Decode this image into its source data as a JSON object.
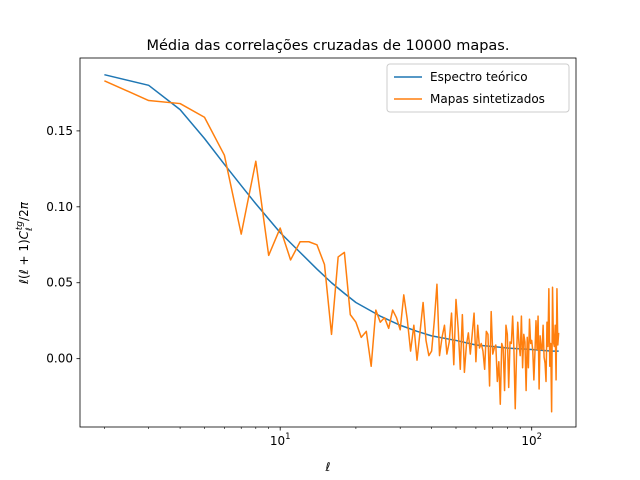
{
  "chart_data": {
    "type": "line",
    "title": "Média das correlações cruzadas de 10000 mapas.",
    "xlabel": "ℓ",
    "ylabel": "ℓ(ℓ + 1)C_ℓ^tg/2π",
    "xscale": "log",
    "xlim": [
      1.6,
      150
    ],
    "ylim": [
      -0.045,
      0.198
    ],
    "x_ticks": [
      {
        "value": 10,
        "base": "10",
        "exp": "1"
      },
      {
        "value": 100,
        "base": "10",
        "exp": "2"
      }
    ],
    "y_ticks": [
      {
        "value": 0.0,
        "label": "0.00"
      },
      {
        "value": 0.05,
        "label": "0.05"
      },
      {
        "value": 0.1,
        "label": "0.10"
      },
      {
        "value": 0.15,
        "label": "0.15"
      }
    ],
    "grid": false,
    "legend_position": "top-right",
    "colors": {
      "theory": "#1f77b4",
      "synth": "#ff7f0e"
    },
    "series": [
      {
        "name": "Espectro teórico",
        "color": "#1f77b4",
        "x": [
          2,
          3,
          4,
          5,
          6,
          7,
          8,
          9,
          10,
          12,
          14,
          16,
          18,
          20,
          25,
          30,
          35,
          40,
          50,
          60,
          70,
          80,
          100,
          120,
          128
        ],
        "y": [
          0.187,
          0.18,
          0.164,
          0.145,
          0.128,
          0.114,
          0.102,
          0.092,
          0.083,
          0.07,
          0.059,
          0.05,
          0.043,
          0.037,
          0.028,
          0.022,
          0.018,
          0.015,
          0.012,
          0.009,
          0.008,
          0.007,
          0.006,
          0.005,
          0.005
        ]
      },
      {
        "name": "Mapas sintetizados",
        "color": "#ff7f0e",
        "x": [
          2,
          3,
          4,
          5,
          6,
          7,
          8,
          9,
          10,
          11,
          12,
          13,
          14,
          15,
          16,
          17,
          18,
          19,
          20,
          21,
          22,
          23,
          24,
          25,
          26,
          27,
          28,
          29,
          30,
          31,
          32,
          33,
          34,
          35,
          36,
          37,
          38,
          39,
          40,
          41,
          42,
          43,
          44,
          45,
          46,
          47,
          48,
          49,
          50,
          51,
          52,
          53,
          54,
          55,
          56,
          57,
          58,
          59,
          60,
          61,
          62,
          63,
          64,
          65,
          66,
          67,
          68,
          69,
          70,
          71,
          72,
          73,
          74,
          75,
          76,
          77,
          78,
          79,
          80,
          81,
          82,
          83,
          84,
          85,
          86,
          87,
          88,
          89,
          90,
          91,
          92,
          93,
          94,
          95,
          96,
          97,
          98,
          99,
          100,
          101,
          102,
          103,
          104,
          105,
          106,
          107,
          108,
          109,
          110,
          111,
          112,
          113,
          114,
          115,
          116,
          117,
          118,
          119,
          120,
          121,
          122,
          123,
          124,
          125,
          126,
          127,
          128
        ],
        "y": [
          0.183,
          0.17,
          0.168,
          0.159,
          0.134,
          0.082,
          0.13,
          0.068,
          0.086,
          0.065,
          0.077,
          0.077,
          0.075,
          0.062,
          0.016,
          0.067,
          0.07,
          0.029,
          0.024,
          0.014,
          0.018,
          -0.005,
          0.032,
          0.024,
          0.027,
          0.02,
          0.032,
          0.027,
          0.019,
          0.042,
          0.026,
          0.005,
          0.022,
          -0.001,
          0.018,
          0.037,
          0.012,
          0.002,
          0.005,
          0.025,
          0.049,
          0.002,
          0.014,
          0.022,
          0.003,
          0.011,
          0.03,
          -0.004,
          0.039,
          0.02,
          -0.007,
          0.029,
          -0.009,
          0.009,
          0.017,
          0.003,
          0.016,
          0.03,
          -0.002,
          0.022,
          0.007,
          0.01,
          0.005,
          -0.007,
          0.018,
          0.016,
          -0.018,
          0.031,
          0.003,
          0.007,
          0.009,
          -0.015,
          -0.002,
          -0.03,
          0.01,
          0.007,
          -0.021,
          0.022,
          0.016,
          -0.019,
          0.011,
          0.01,
          0.028,
          0.005,
          -0.033,
          0.002,
          0.024,
          0.01,
          0.002,
          0.028,
          -0.006,
          0.016,
          0.011,
          -0.021,
          0.014,
          -0.006,
          0.026,
          0.01,
          0.012,
          0.005,
          -0.014,
          0.004,
          0.025,
          0.006,
          0.028,
          -0.02,
          0.015,
          0.007,
          0.006,
          0.022,
          0.001,
          -0.003,
          -0.015,
          0.024,
          0.008,
          0.046,
          -0.005,
          0.01,
          -0.035,
          0.047,
          0.011,
          0.008,
          0.022,
          -0.014,
          0.046,
          0.009,
          0.017
        ]
      }
    ]
  }
}
